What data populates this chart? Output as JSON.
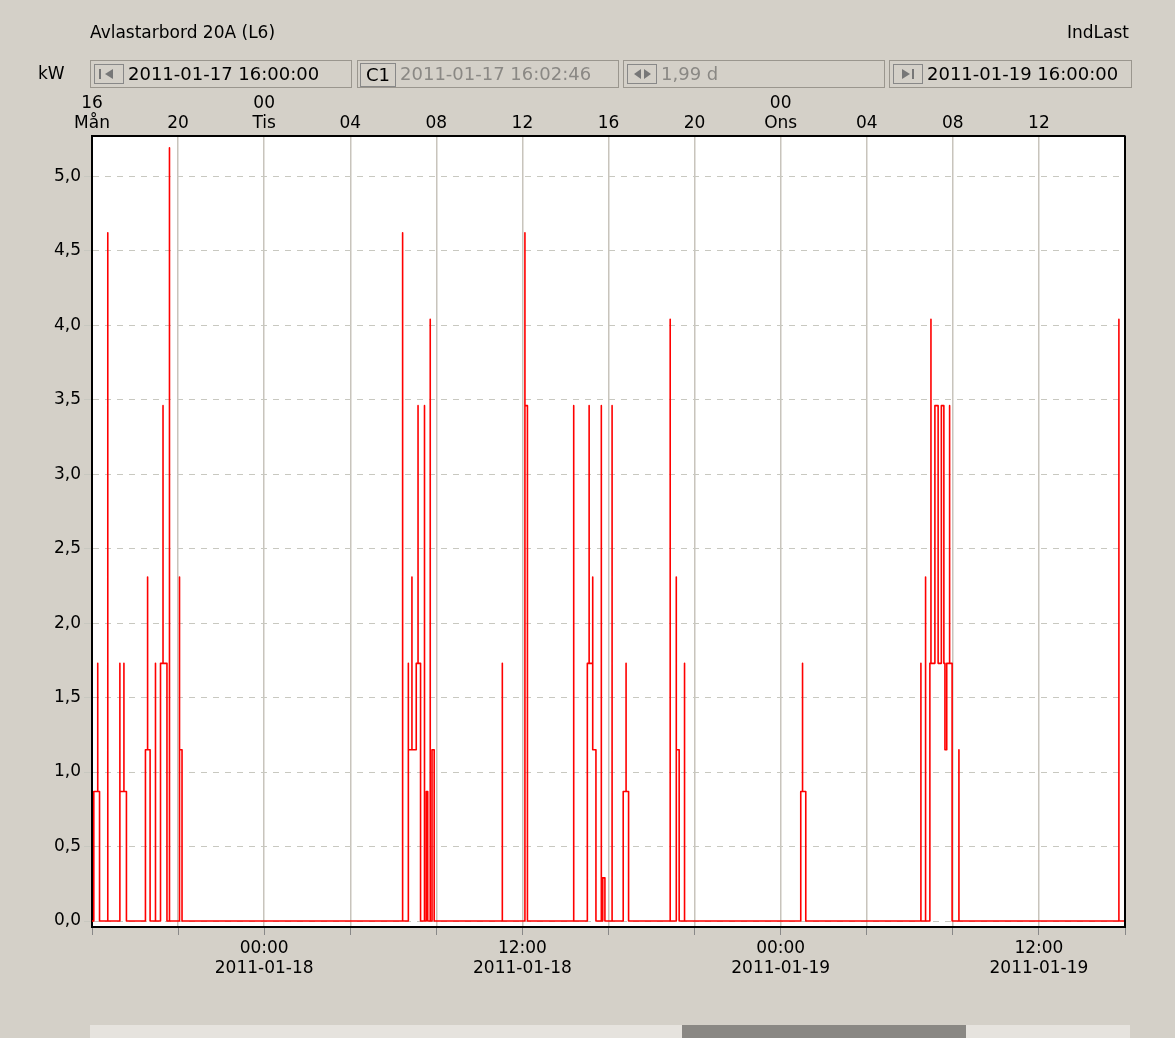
{
  "chart_data": {
    "type": "line",
    "title": "Avlastarbord 20A (L6)",
    "ylabel": "kW",
    "annotations": [
      "IndLast",
      "2011-01-17 16:00:00",
      "C1",
      "2011-01-17 16:02:46",
      "1,99 d",
      "2011-01-19 16:00:00"
    ],
    "series": [
      {
        "color": "#ff0000",
        "x": [
          "2011-01-17T16:00",
          "2011-01-17T16:05",
          "2011-01-17T16:05",
          "2011-01-17T16:16",
          "2011-01-17T16:16",
          "2011-01-17T16:16",
          "2011-01-17T16:21",
          "2011-01-17T16:21",
          "2011-01-17T16:44",
          "2011-01-17T16:44",
          "2011-01-17T16:44",
          "2011-01-17T17:17",
          "2011-01-17T17:17",
          "2011-01-17T17:18",
          "2011-01-17T17:18",
          "2011-01-17T17:18",
          "2011-01-17T17:29",
          "2011-01-17T17:29",
          "2011-01-17T17:29",
          "2011-01-17T17:36",
          "2011-01-17T17:36",
          "2011-01-17T18:29",
          "2011-01-17T18:29",
          "2011-01-17T18:35",
          "2011-01-17T18:35",
          "2011-01-17T18:35",
          "2011-01-17T18:42",
          "2011-01-17T18:42",
          "2011-01-17T18:57",
          "2011-01-17T18:57",
          "2011-01-17T18:57",
          "2011-01-17T19:11",
          "2011-01-17T19:11",
          "2011-01-17T19:18",
          "2011-01-17T19:18",
          "2011-01-17T19:18",
          "2011-01-17T19:29",
          "2011-01-17T19:29",
          "2011-01-17T19:36",
          "2011-01-17T19:36",
          "2011-01-17T19:36",
          "2011-01-17T20:04",
          "2011-01-17T20:04",
          "2011-01-17T20:04",
          "2011-01-17T20:11",
          "2011-01-17T20:11",
          "2011-01-18T06:26",
          "2011-01-18T06:26",
          "2011-01-18T06:26",
          "2011-01-18T06:42",
          "2011-01-18T06:42",
          "2011-01-18T06:42",
          "2011-01-18T06:52",
          "2011-01-18T06:52",
          "2011-01-18T06:52",
          "2011-01-18T07:04",
          "2011-01-18T07:04",
          "2011-01-18T07:09",
          "2011-01-18T07:09",
          "2011-01-18T07:09",
          "2011-01-18T07:16",
          "2011-01-18T07:16",
          "2011-01-18T07:27",
          "2011-01-18T07:27",
          "2011-01-18T07:27",
          "2011-01-18T07:32",
          "2011-01-18T07:32",
          "2011-01-18T07:36",
          "2011-01-18T07:36",
          "2011-01-18T07:43",
          "2011-01-18T07:43",
          "2011-01-18T07:43",
          "2011-01-18T07:48",
          "2011-01-18T07:48",
          "2011-01-18T07:54",
          "2011-01-18T07:54",
          "2011-01-18T11:04",
          "2011-01-18T11:04",
          "2011-01-18T11:04",
          "2011-01-18T12:07",
          "2011-01-18T12:07",
          "2011-01-18T12:07",
          "2011-01-18T12:14",
          "2011-01-18T12:14",
          "2011-01-18T14:23",
          "2011-01-18T14:23",
          "2011-01-18T14:23",
          "2011-01-18T15:01",
          "2011-01-18T15:01",
          "2011-01-18T15:06",
          "2011-01-18T15:06",
          "2011-01-18T15:06",
          "2011-01-18T15:16",
          "2011-01-18T15:16",
          "2011-01-18T15:16",
          "2011-01-18T15:25",
          "2011-01-18T15:25",
          "2011-01-18T15:40",
          "2011-01-18T15:40",
          "2011-01-18T15:40",
          "2011-01-18T15:44",
          "2011-01-18T15:44",
          "2011-01-18T15:50",
          "2011-01-18T15:50",
          "2011-01-18T16:10",
          "2011-01-18T16:10",
          "2011-01-18T16:10",
          "2011-01-18T16:41",
          "2011-01-18T16:41",
          "2011-01-18T16:49",
          "2011-01-18T16:49",
          "2011-01-18T16:49",
          "2011-01-18T16:56",
          "2011-01-18T16:56",
          "2011-01-18T18:52",
          "2011-01-18T18:52",
          "2011-01-18T18:52",
          "2011-01-18T19:09",
          "2011-01-18T19:09",
          "2011-01-18T19:09",
          "2011-01-18T19:17",
          "2011-01-18T19:17",
          "2011-01-18T19:32",
          "2011-01-18T19:32",
          "2011-01-18T19:32",
          "2011-01-19T00:56",
          "2011-01-19T00:56",
          "2011-01-19T01:01",
          "2011-01-19T01:01",
          "2011-01-19T01:01",
          "2011-01-19T01:10",
          "2011-01-19T01:10",
          "2011-01-19T06:31",
          "2011-01-19T06:31",
          "2011-01-19T06:31",
          "2011-01-19T06:44",
          "2011-01-19T06:44",
          "2011-01-19T06:44",
          "2011-01-19T06:56",
          "2011-01-19T06:56",
          "2011-01-19T06:59",
          "2011-01-19T06:59",
          "2011-01-19T06:59",
          "2011-01-19T07:10",
          "2011-01-19T07:10",
          "2011-01-19T07:19",
          "2011-01-19T07:19",
          "2011-01-19T07:28",
          "2011-01-19T07:28",
          "2011-01-19T07:35",
          "2011-01-19T07:35",
          "2011-01-19T07:38",
          "2011-01-19T07:38",
          "2011-01-19T07:43",
          "2011-01-19T07:43",
          "2011-01-19T07:51",
          "2011-01-19T07:51",
          "2011-01-19T07:51",
          "2011-01-19T07:58",
          "2011-01-19T07:58",
          "2011-01-19T08:17",
          "2011-01-19T08:17",
          "2011-01-19T08:17",
          "2011-01-19T15:43",
          "2011-01-19T15:43",
          "2011-01-19T15:43",
          "2011-01-19T16:00"
        ],
        "values": [
          0,
          0,
          0.87,
          0.87,
          1.73,
          0.87,
          0.87,
          0,
          0,
          4.62,
          0,
          0,
          0.87,
          0.87,
          1.73,
          0.87,
          0.87,
          1.73,
          0.87,
          0.87,
          0,
          0,
          1.15,
          1.15,
          2.31,
          1.15,
          1.15,
          0,
          0,
          1.73,
          0,
          0,
          1.73,
          1.73,
          3.46,
          1.73,
          1.73,
          0,
          0,
          5.19,
          0,
          0,
          2.31,
          1.15,
          1.15,
          0,
          0,
          4.62,
          0,
          0,
          1.73,
          1.15,
          1.15,
          2.31,
          1.15,
          1.15,
          1.73,
          1.73,
          3.46,
          1.73,
          1.73,
          0,
          0,
          3.46,
          0,
          0,
          0.87,
          0.87,
          0,
          0,
          4.04,
          0,
          0,
          1.15,
          1.15,
          0,
          0,
          1.73,
          0,
          0,
          4.62,
          3.46,
          3.46,
          0,
          0,
          3.46,
          0,
          0,
          1.73,
          1.73,
          3.46,
          1.73,
          1.73,
          2.31,
          1.15,
          1.15,
          0,
          0,
          3.46,
          0,
          0,
          0.29,
          0.29,
          0,
          0,
          3.46,
          0,
          0,
          0.87,
          0.87,
          1.73,
          0.87,
          0.87,
          0,
          0,
          4.04,
          0,
          0,
          2.31,
          1.15,
          1.15,
          0,
          0,
          1.73,
          0,
          0,
          0.87,
          0.87,
          1.73,
          0.87,
          0.87,
          0,
          0,
          1.73,
          0,
          0,
          2.31,
          0,
          0,
          1.73,
          1.73,
          4.04,
          1.73,
          1.73,
          3.46,
          3.46,
          1.73,
          1.73,
          3.46,
          3.46,
          1.73,
          1.73,
          1.15,
          1.15,
          1.73,
          1.73,
          3.46,
          1.73,
          1.73,
          0,
          0,
          1.15,
          0,
          0,
          4.04,
          0,
          0
        ]
      }
    ],
    "xlim": [
      "2011-01-17T16:00",
      "2011-01-19T16:00"
    ],
    "xticks": [
      {
        "value": "2011-01-17T16:00",
        "label": null
      },
      {
        "value": "2011-01-17T20:00",
        "label": null
      },
      {
        "value": "2011-01-18T00:00",
        "label": "00:00\n2011-01-18"
      },
      {
        "value": "2011-01-18T04:00",
        "label": null
      },
      {
        "value": "2011-01-18T08:00",
        "label": null
      },
      {
        "value": "2011-01-18T12:00",
        "label": "12:00\n2011-01-18"
      },
      {
        "value": "2011-01-18T16:00",
        "label": null
      },
      {
        "value": "2011-01-18T20:00",
        "label": null
      },
      {
        "value": "2011-01-19T00:00",
        "label": "00:00\n2011-01-19"
      },
      {
        "value": "2011-01-19T04:00",
        "label": null
      },
      {
        "value": "2011-01-19T08:00",
        "label": null
      },
      {
        "value": "2011-01-19T12:00",
        "label": "12:00\n2011-01-19"
      },
      {
        "value": "2011-01-19T16:00",
        "label": null
      }
    ],
    "x2lim": [
      "2011-01-17T16:00",
      "2011-01-19T16:00"
    ],
    "x2ticks": [
      {
        "value": "2011-01-17T16:00",
        "label": "16\nMån"
      },
      {
        "value": "2011-01-17T20:00",
        "label": "20"
      },
      {
        "value": "2011-01-18T00:00",
        "label": "00\nTis"
      },
      {
        "value": "2011-01-18T04:00",
        "label": "04"
      },
      {
        "value": "2011-01-18T08:00",
        "label": "08"
      },
      {
        "value": "2011-01-18T12:00",
        "label": "12"
      },
      {
        "value": "2011-01-18T16:00",
        "label": "16"
      },
      {
        "value": "2011-01-18T20:00",
        "label": "20"
      },
      {
        "value": "2011-01-19T00:00",
        "label": "00\nOns"
      },
      {
        "value": "2011-01-19T04:00",
        "label": "04"
      },
      {
        "value": "2011-01-19T08:00",
        "label": "08"
      },
      {
        "value": "2011-01-19T12:00",
        "label": "12"
      }
    ],
    "ylim": [
      -0.04,
      5.27
    ],
    "yticks": [
      {
        "value": 0,
        "label": "0,0"
      },
      {
        "value": 0.5,
        "label": "0,5"
      },
      {
        "value": 1,
        "label": "1,0"
      },
      {
        "value": 1.5,
        "label": "1,5"
      },
      {
        "value": 2,
        "label": "2,0"
      },
      {
        "value": 2.5,
        "label": "2,5"
      },
      {
        "value": 3,
        "label": "3,0"
      },
      {
        "value": 3.5,
        "label": "3,5"
      },
      {
        "value": 4,
        "label": "4,0"
      },
      {
        "value": 4.5,
        "label": "4,5"
      },
      {
        "value": 5,
        "label": "5,0"
      }
    ],
    "grid": true,
    "legend": false,
    "marker": "none",
    "line_style": "solid"
  }
}
